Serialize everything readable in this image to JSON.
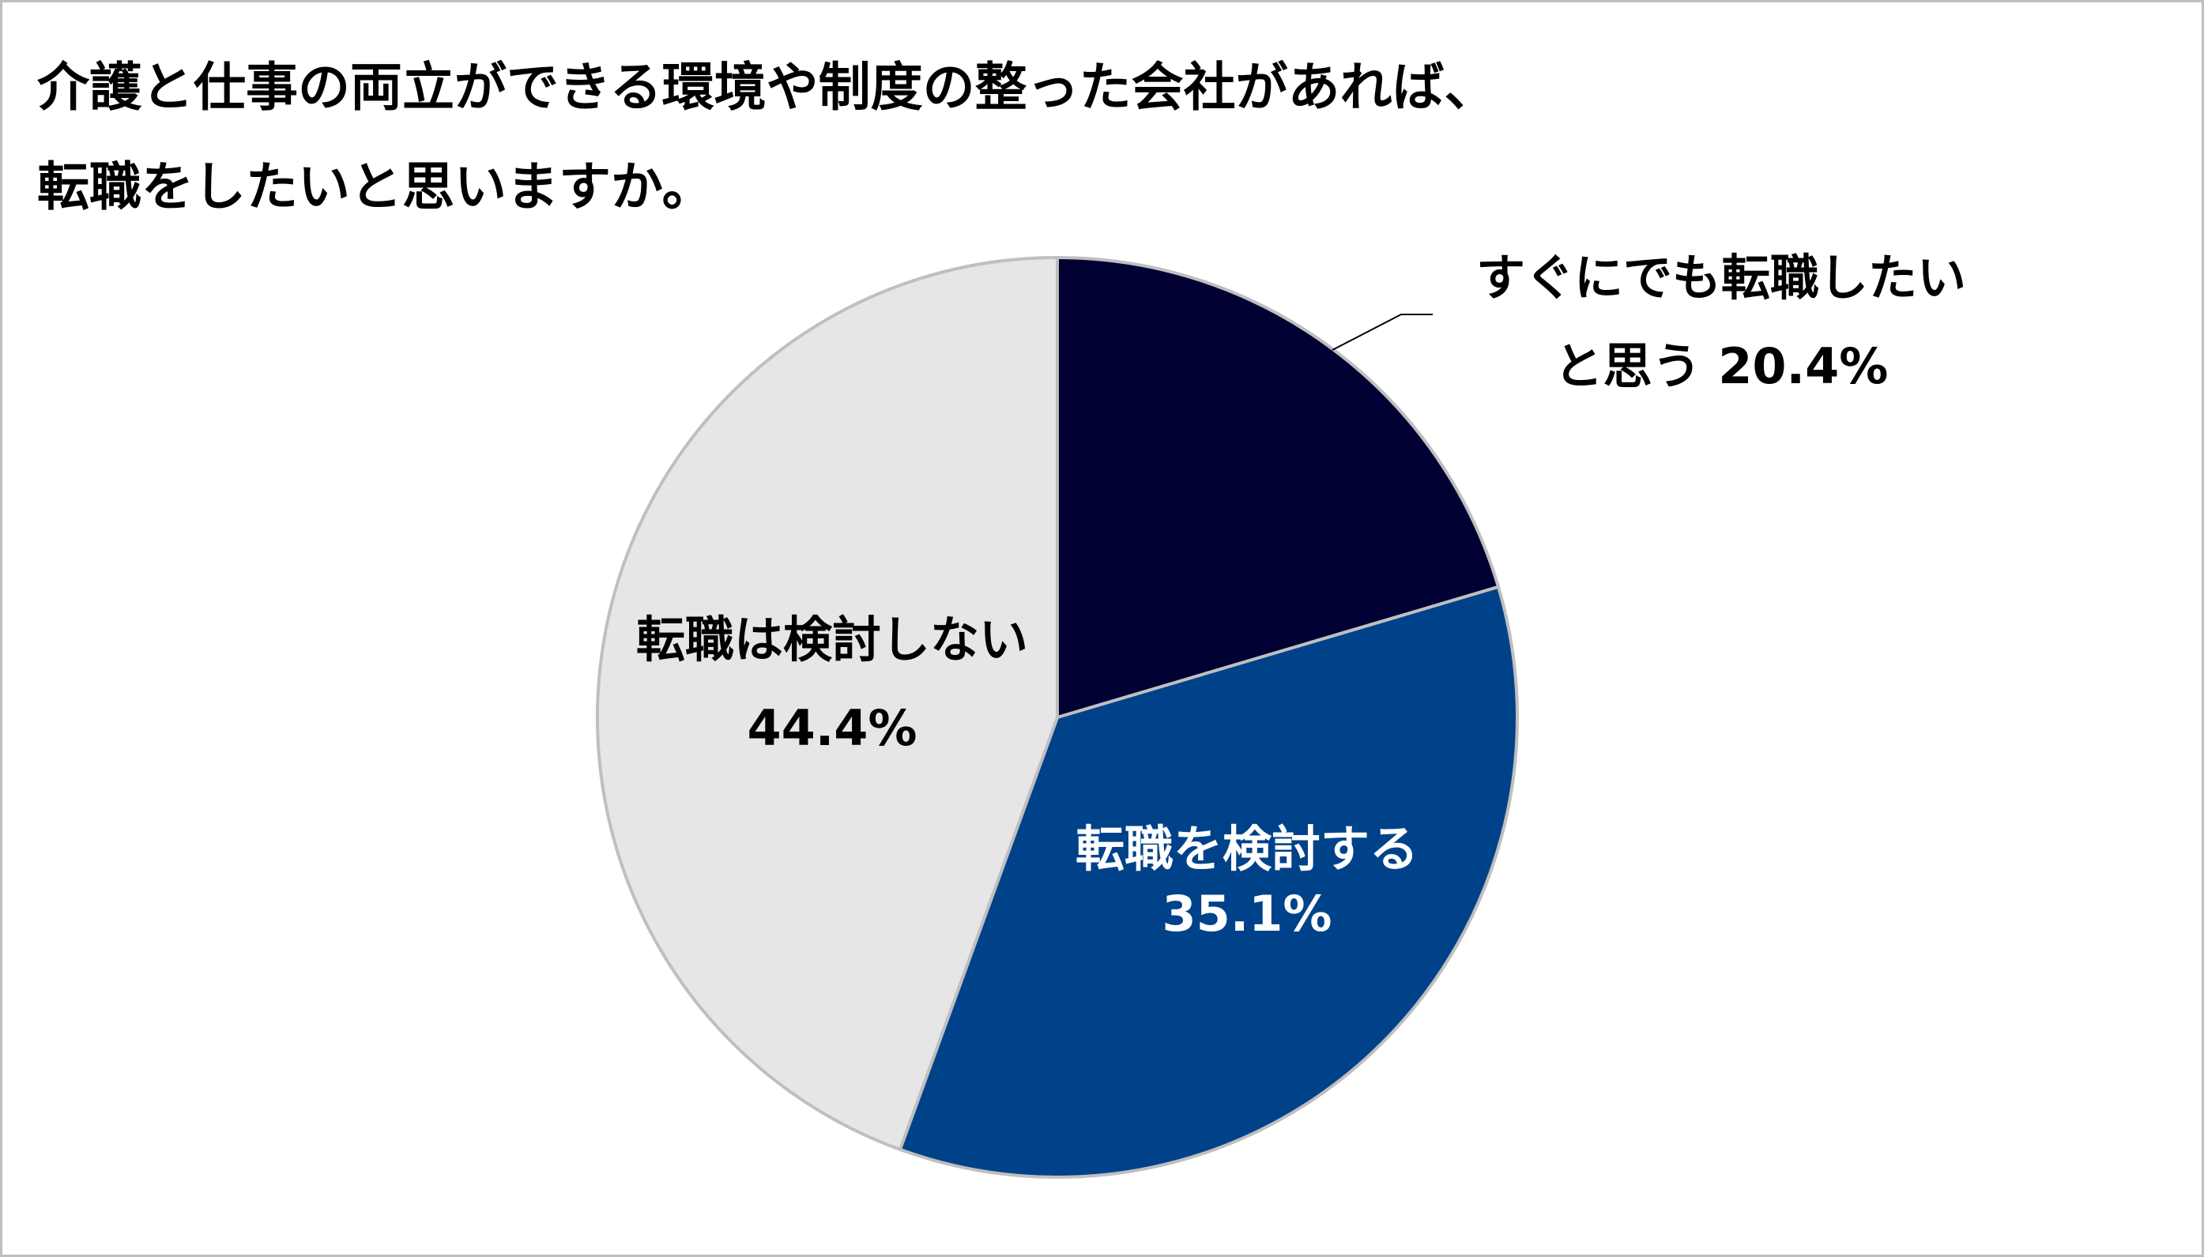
{
  "title": {
    "line1": "介護と仕事の両立ができる環境や制度の整った会社があれば、",
    "line2": "転職をしたいと思いますか。"
  },
  "chart_data": {
    "type": "pie",
    "start_angle_deg": 0,
    "direction": "clockwise",
    "slices": [
      {
        "label_lines": [
          "すぐにでも転職したい",
          "と思う 20.4%"
        ],
        "value": 20.4,
        "color": "#000033",
        "text_color": "#000000"
      },
      {
        "label_lines": [
          "転職を検討する",
          "35.1%"
        ],
        "value": 35.1,
        "color": "#00428a",
        "text_color": "#ffffff"
      },
      {
        "label_lines": [
          "転職は検討しない",
          "44.4%"
        ],
        "value": 44.4,
        "color": "#e6e6e6",
        "text_color": "#000000"
      }
    ],
    "legend": "none"
  }
}
